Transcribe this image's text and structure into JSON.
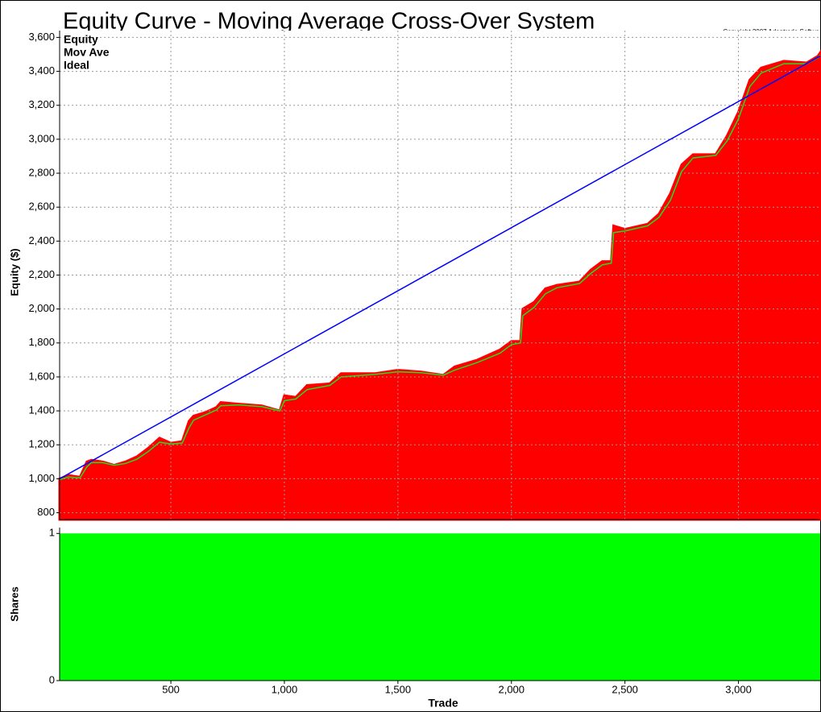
{
  "chart_data": [
    {
      "type": "area",
      "title": "Equity Curve - Moving Average Cross-Over System",
      "subtitle": "Copyright 2007 Adaptrade Softwa",
      "y_label": "Equity ($)",
      "ylim": [
        760,
        3640
      ],
      "yticks": [
        800,
        {
          "value": 1000,
          "label": "1,000"
        },
        {
          "value": 1200,
          "label": "1,200"
        },
        {
          "value": 1400,
          "label": "1,400"
        },
        {
          "value": 1600,
          "label": "1,600"
        },
        {
          "value": 1800,
          "label": "1,800"
        },
        {
          "value": 2000,
          "label": "2,000"
        },
        {
          "value": 2200,
          "label": "2,200"
        },
        {
          "value": 2400,
          "label": "2,400"
        },
        {
          "value": 2600,
          "label": "2,600"
        },
        {
          "value": 2800,
          "label": "2,800"
        },
        {
          "value": 3000,
          "label": "3,000"
        },
        {
          "value": 3200,
          "label": "3,200"
        },
        {
          "value": 3400,
          "label": "3,400"
        },
        {
          "value": 3600,
          "label": "3,600"
        }
      ],
      "grid": true,
      "series": [
        {
          "name": "Equity",
          "color": "#ff0000",
          "style": "area",
          "x": [
            10,
            50,
            100,
            130,
            150,
            200,
            250,
            300,
            350,
            400,
            450,
            500,
            550,
            580,
            600,
            650,
            700,
            720,
            800,
            900,
            980,
            1000,
            1050,
            1100,
            1200,
            1250,
            1400,
            1500,
            1600,
            1700,
            1750,
            1850,
            1950,
            2000,
            2040,
            2050,
            2100,
            2150,
            2200,
            2300,
            2350,
            2400,
            2440,
            2450,
            2500,
            2600,
            2650,
            2700,
            2750,
            2800,
            2900,
            2950,
            3000,
            3050,
            3100,
            3200,
            3300,
            3350,
            3360
          ],
          "values": [
            1000,
            1020,
            1010,
            1100,
            1110,
            1100,
            1080,
            1100,
            1130,
            1180,
            1240,
            1210,
            1220,
            1340,
            1370,
            1390,
            1420,
            1450,
            1440,
            1430,
            1400,
            1490,
            1480,
            1550,
            1560,
            1620,
            1620,
            1640,
            1630,
            1610,
            1660,
            1700,
            1760,
            1810,
            1810,
            2000,
            2040,
            2120,
            2140,
            2160,
            2230,
            2280,
            2280,
            2490,
            2470,
            2500,
            2560,
            2680,
            2850,
            2910,
            2910,
            3020,
            3160,
            3350,
            3420,
            3460,
            3450,
            3490,
            3510
          ]
        },
        {
          "name": "Mov Ave",
          "color": "#22dd22",
          "style": "line",
          "x": [
            10,
            50,
            100,
            130,
            150,
            200,
            250,
            300,
            350,
            400,
            450,
            500,
            550,
            580,
            600,
            650,
            700,
            720,
            800,
            900,
            980,
            1000,
            1050,
            1100,
            1200,
            1250,
            1400,
            1500,
            1600,
            1700,
            1750,
            1850,
            1950,
            2000,
            2040,
            2050,
            2100,
            2150,
            2200,
            2300,
            2350,
            2400,
            2440,
            2450,
            2500,
            2600,
            2650,
            2700,
            2750,
            2800,
            2900,
            2950,
            3000,
            3050,
            3100,
            3200,
            3300,
            3350,
            3360
          ],
          "values": [
            995,
            1010,
            1005,
            1070,
            1095,
            1095,
            1080,
            1090,
            1115,
            1160,
            1215,
            1205,
            1210,
            1300,
            1345,
            1375,
            1405,
            1430,
            1435,
            1425,
            1400,
            1460,
            1470,
            1525,
            1550,
            1600,
            1615,
            1630,
            1625,
            1610,
            1640,
            1685,
            1740,
            1790,
            1800,
            1960,
            2010,
            2090,
            2125,
            2150,
            2210,
            2260,
            2270,
            2450,
            2460,
            2490,
            2540,
            2640,
            2810,
            2890,
            2905,
            2990,
            3120,
            3310,
            3390,
            3445,
            3445,
            3480,
            3495
          ]
        },
        {
          "name": "Ideal",
          "color": "#0000ff",
          "style": "line",
          "x": [
            10,
            3360
          ],
          "values": [
            1000,
            3490
          ]
        }
      ]
    },
    {
      "type": "area",
      "y_label": "Shares",
      "x_label": "Trade",
      "xlim": [
        10,
        3360
      ],
      "xticks": [
        500,
        {
          "value": 1000,
          "label": "1,000"
        },
        {
          "value": 1500,
          "label": "1,500"
        },
        {
          "value": 2000,
          "label": "2,000"
        },
        {
          "value": 2500,
          "label": "2,500"
        },
        {
          "value": 3000,
          "label": "3,000"
        }
      ],
      "ylim": [
        0,
        1.04
      ],
      "yticks": [
        0,
        1
      ],
      "series": [
        {
          "name": "Shares",
          "color": "#00ff00",
          "style": "area",
          "x": [
            10,
            3360
          ],
          "values": [
            1,
            1
          ]
        }
      ]
    }
  ]
}
